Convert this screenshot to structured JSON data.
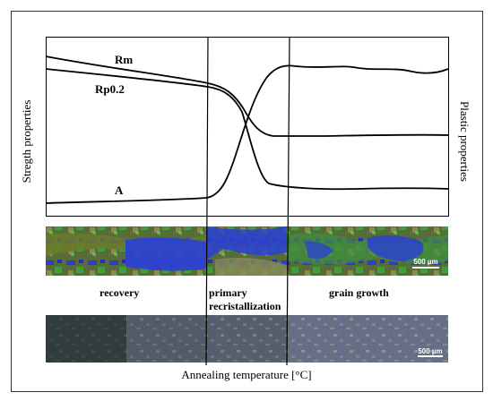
{
  "figure": {
    "left_axis_label": "Stregth properties",
    "right_axis_label": "Plastic properties",
    "x_axis_label": "Annealing temperature [°C]",
    "curves": {
      "rm": "Rm",
      "rp": "Rp0.2",
      "a": "A"
    },
    "stages": {
      "recovery": "recovery",
      "primary_line1": "primary",
      "primary_line2": "recristallization",
      "grain_growth": "grain growth"
    },
    "scale_bars": {
      "top": "500 µm",
      "bottom": "500 µm"
    },
    "colors": {
      "micro_blue": "#2a3fd6",
      "micro_green": "#4aa83a",
      "micro_olive": "#7a7a3a",
      "micro_dark": "#1a2030"
    }
  }
}
